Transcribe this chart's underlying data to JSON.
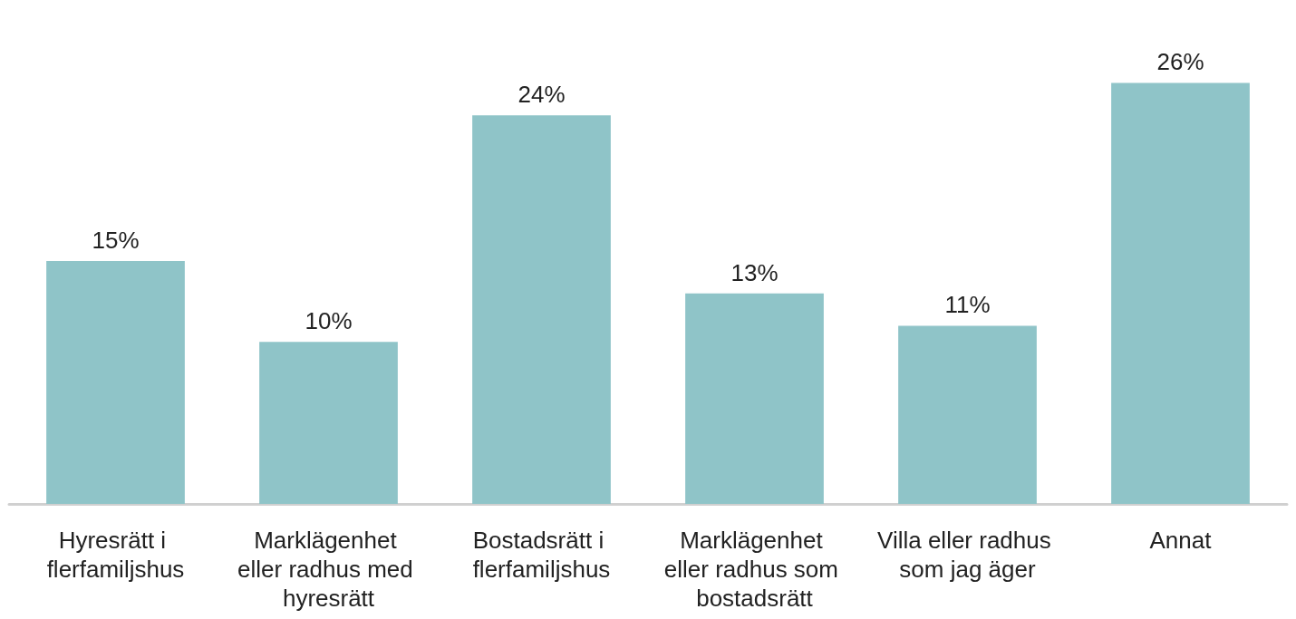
{
  "chart_data": {
    "type": "bar",
    "categories": [
      "Hyresrätt i flerfamiljshus",
      "Marklägenhet eller radhus med hyresrätt",
      "Bostadsrätt i flerfamiljshus",
      "Marklägenhet eller radhus som bostadsrätt",
      "Villa eller radhus som jag äger",
      "Annat"
    ],
    "values": [
      15,
      10,
      24,
      13,
      11,
      26
    ],
    "value_labels": [
      "15%",
      "10%",
      "24%",
      "13%",
      "11%",
      "26%"
    ],
    "color": "#8fc4c8"
  }
}
